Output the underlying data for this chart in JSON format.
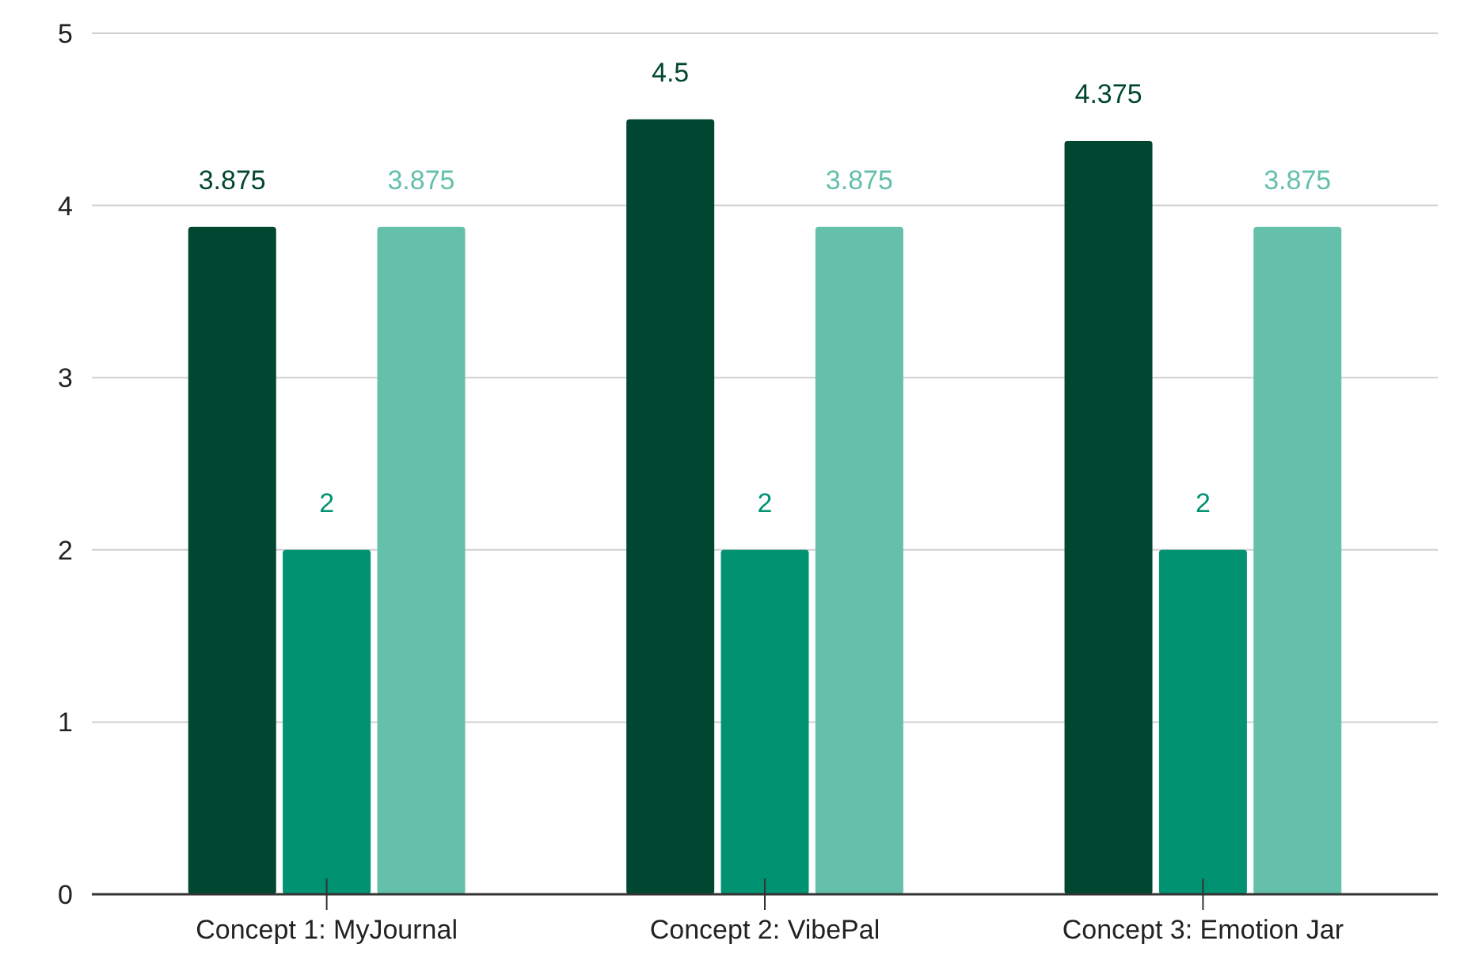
{
  "chart_data": {
    "type": "bar",
    "categories": [
      "Concept 1: MyJournal",
      "Concept 2: VibePal",
      "Concept 3: Emotion Jar"
    ],
    "series": [
      {
        "color": "#014631",
        "values": [
          3.875,
          4.5,
          4.375
        ]
      },
      {
        "color": "#019272",
        "values": [
          2,
          2,
          2
        ]
      },
      {
        "color": "#64c0aa",
        "values": [
          3.875,
          3.875,
          3.875
        ]
      }
    ],
    "ylim": [
      0,
      5
    ],
    "yticks": [
      0,
      1,
      2,
      3,
      4,
      5
    ],
    "grid": "y",
    "data_labels": true
  }
}
